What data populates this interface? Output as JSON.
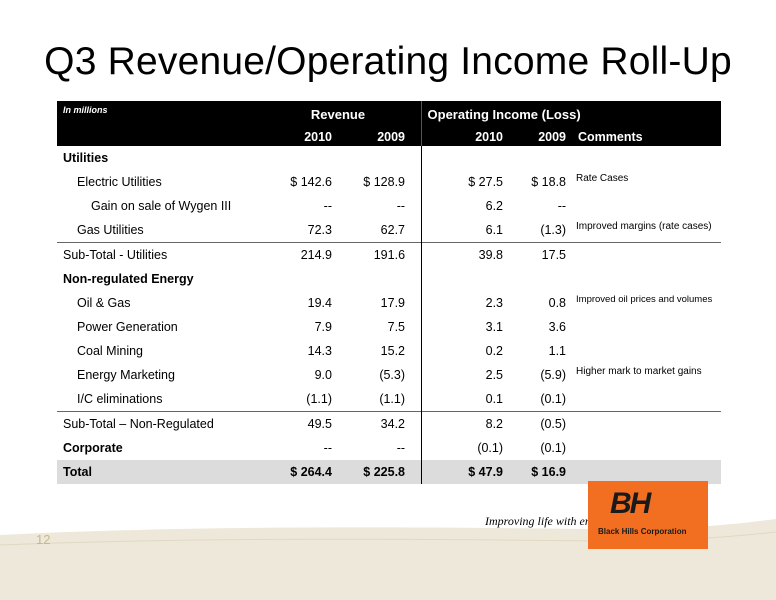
{
  "slide": {
    "title": "Q3 Revenue/Operating Income Roll-Up",
    "page_number": "12",
    "tagline": "Improving life with energy",
    "company": "Black Hills Corporation",
    "logo_mark": "BH",
    "accent_color": "#f26f21"
  },
  "table": {
    "note": "In millions",
    "group_revenue": "Revenue",
    "group_operating": "Operating Income (Loss)",
    "col_rev_2010": "2010",
    "col_rev_2009": "2009",
    "col_op_2010": "2010",
    "col_op_2009": "2009",
    "col_comments": "Comments",
    "rows": [
      {
        "label": "Utilities",
        "rev2010": "",
        "rev2009": "",
        "op2010": "",
        "op2009": "",
        "comment": ""
      },
      {
        "label": "Electric Utilities",
        "rev2010": "$ 142.6",
        "rev2009": "$ 128.9",
        "op2010": "$ 27.5",
        "op2009": "$ 18.8",
        "comment": "Rate Cases"
      },
      {
        "label": "Gain on sale of Wygen III",
        "rev2010": "--",
        "rev2009": "--",
        "op2010": "6.2",
        "op2009": "--",
        "comment": ""
      },
      {
        "label": "Gas Utilities",
        "rev2010": "72.3",
        "rev2009": "62.7",
        "op2010": "6.1",
        "op2009": "(1.3)",
        "comment": "Improved margins (rate cases)"
      },
      {
        "label": "Sub-Total - Utilities",
        "rev2010": "214.9",
        "rev2009": "191.6",
        "op2010": "39.8",
        "op2009": "17.5",
        "comment": ""
      },
      {
        "label": "Non-regulated Energy",
        "rev2010": "",
        "rev2009": "",
        "op2010": "",
        "op2009": "",
        "comment": ""
      },
      {
        "label": "Oil & Gas",
        "rev2010": "19.4",
        "rev2009": "17.9",
        "op2010": "2.3",
        "op2009": "0.8",
        "comment": "Improved oil prices and volumes"
      },
      {
        "label": "Power Generation",
        "rev2010": "7.9",
        "rev2009": "7.5",
        "op2010": "3.1",
        "op2009": "3.6",
        "comment": ""
      },
      {
        "label": "Coal Mining",
        "rev2010": "14.3",
        "rev2009": "15.2",
        "op2010": "0.2",
        "op2009": "1.1",
        "comment": ""
      },
      {
        "label": "Energy Marketing",
        "rev2010": "9.0",
        "rev2009": "(5.3)",
        "op2010": "2.5",
        "op2009": "(5.9)",
        "comment": "Higher mark to market gains"
      },
      {
        "label": "I/C eliminations",
        "rev2010": "(1.1)",
        "rev2009": "(1.1)",
        "op2010": "0.1",
        "op2009": "(0.1)",
        "comment": ""
      },
      {
        "label": "Sub-Total – Non-Regulated",
        "rev2010": "49.5",
        "rev2009": "34.2",
        "op2010": "8.2",
        "op2009": "(0.5)",
        "comment": ""
      },
      {
        "label": "Corporate",
        "rev2010": "--",
        "rev2009": "--",
        "op2010": "(0.1)",
        "op2009": "(0.1)",
        "comment": ""
      },
      {
        "label": "Total",
        "rev2010": "$ 264.4",
        "rev2009": "$ 225.8",
        "op2010": "$ 47.9",
        "op2009": "$ 16.9",
        "comment": ""
      }
    ]
  }
}
